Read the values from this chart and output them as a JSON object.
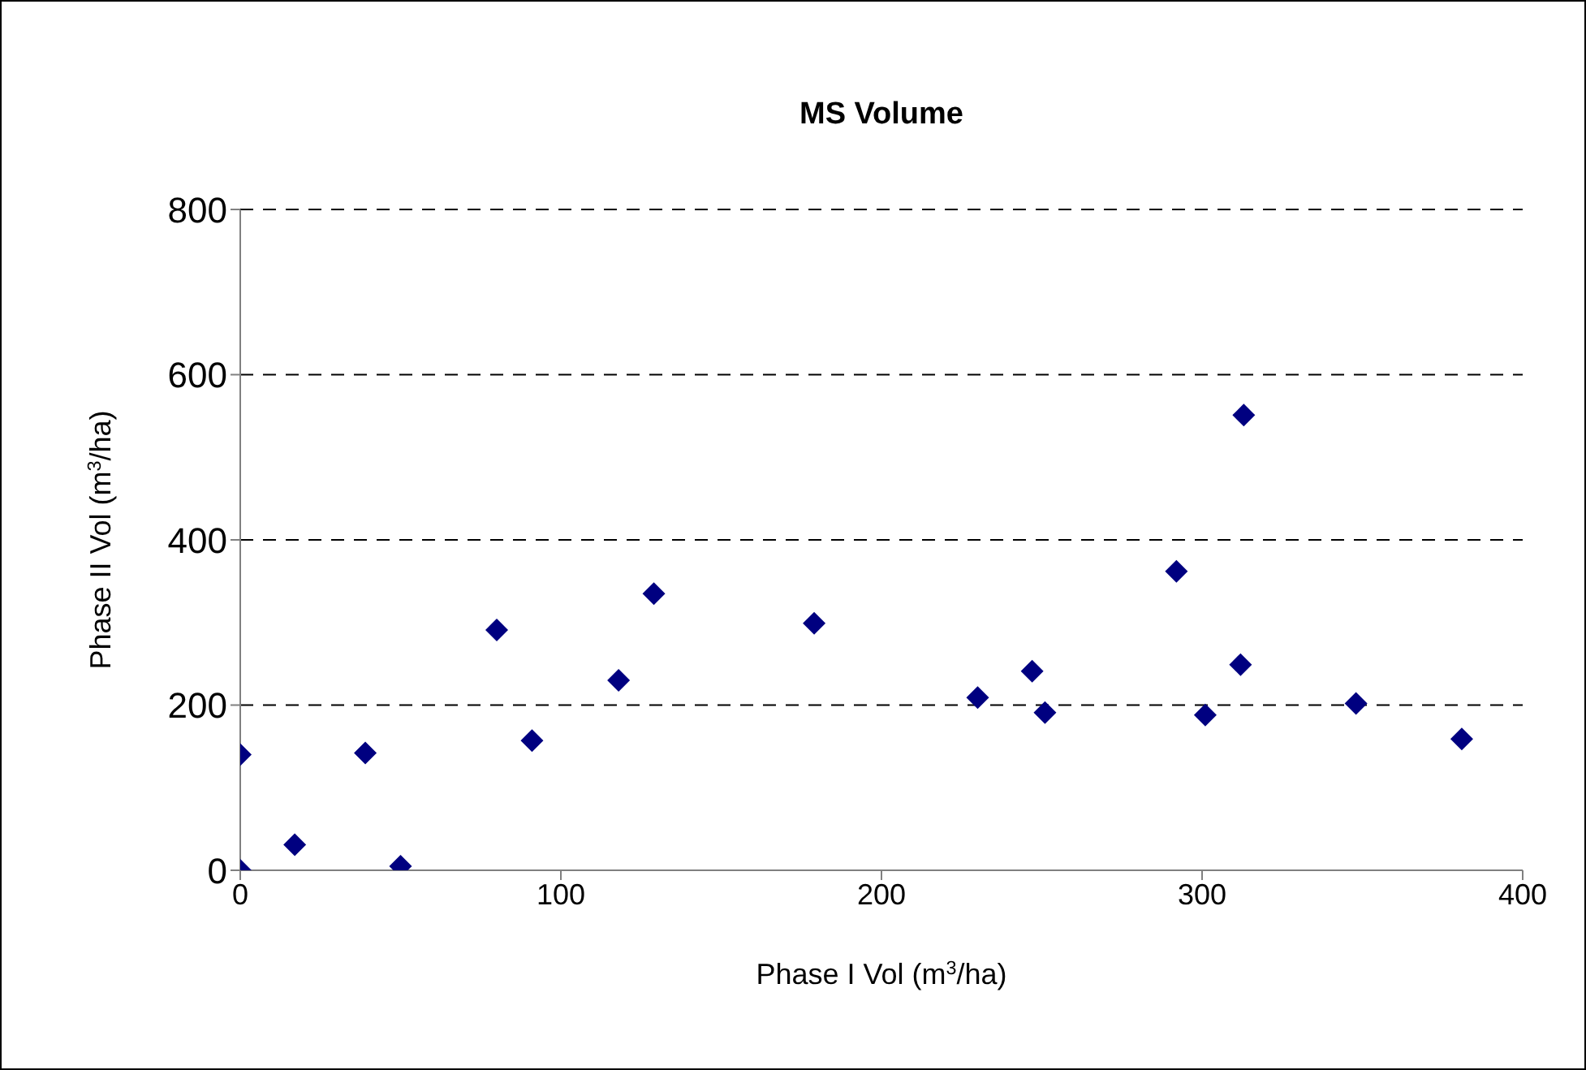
{
  "chart_data": {
    "type": "scatter",
    "title": "MS Volume",
    "xlabel": "Phase I Vol (m$^{3}$/ha)",
    "ylabel": "Phase II Vol (m$^{3}$/ha)",
    "x": [
      0,
      0,
      17,
      39,
      50,
      80,
      91,
      118,
      129,
      179,
      230,
      247,
      251,
      292,
      313,
      301,
      312,
      348,
      381
    ],
    "values": [
      140,
      0,
      31,
      142,
      5,
      291,
      157,
      230,
      335,
      299,
      209,
      241,
      191,
      362,
      551,
      188,
      249,
      202,
      159
    ],
    "color": "#000080",
    "marker": "diamond",
    "xlim": [
      0,
      400
    ],
    "xticks": [
      0,
      100,
      200,
      300,
      400
    ],
    "ylim": [
      0,
      800
    ],
    "yticks": [
      0,
      200,
      400,
      600,
      800
    ],
    "grid": "y"
  }
}
